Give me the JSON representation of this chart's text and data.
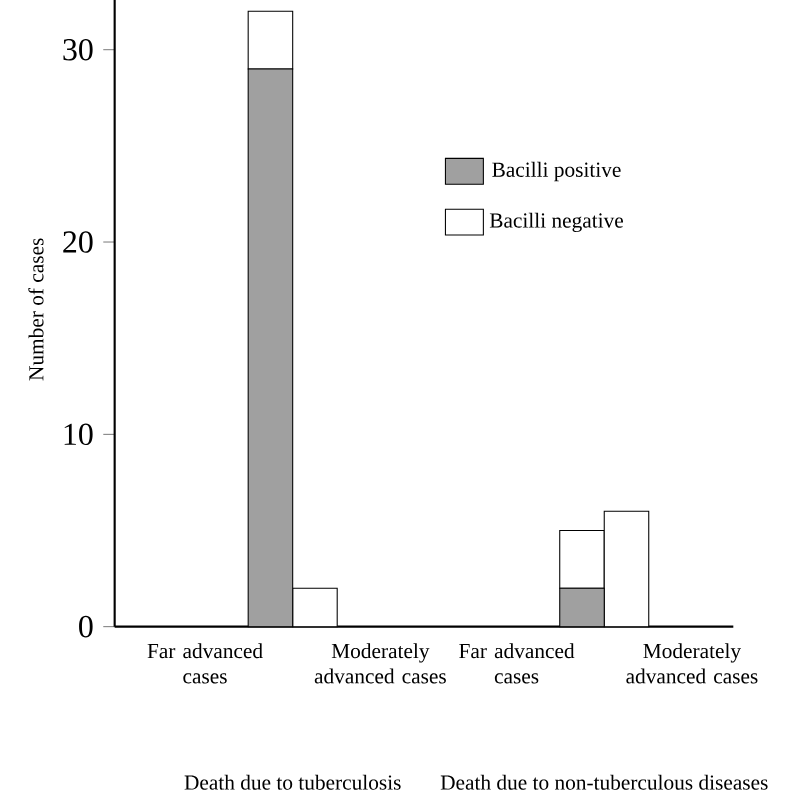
{
  "chart_data": {
    "type": "bar",
    "stacked": true,
    "ylabel": "Number of cases",
    "categories": [
      "Far advanced cases",
      "Moderately advanced cases",
      "Far advanced cases",
      "Moderately advanced cases"
    ],
    "series": [
      {
        "name": "Bacilli positive",
        "color": "#a0a0a0",
        "values": [
          29,
          0,
          2,
          0
        ]
      },
      {
        "name": "Bacilli negative",
        "color": "#ffffff",
        "values": [
          3,
          2,
          3,
          6
        ]
      }
    ],
    "ylim": [
      0,
      33
    ],
    "yticks": [
      0,
      10,
      20,
      30
    ],
    "legend": "right",
    "grid": false,
    "annotations": [
      "Death due to tuberculosis",
      "Death due to non-tuberculous diseases"
    ]
  }
}
